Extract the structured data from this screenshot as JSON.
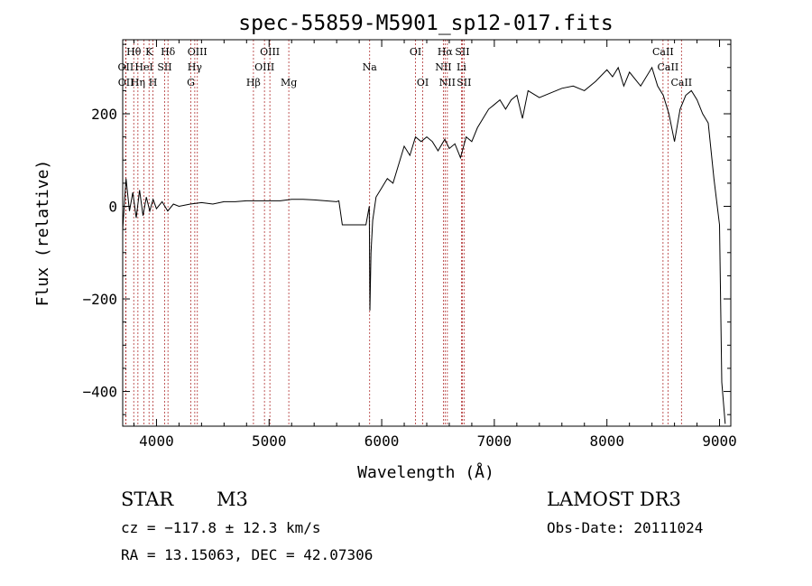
{
  "chart_data": {
    "type": "line",
    "title": "spec-55859-M5901_sp12-017.fits",
    "xlabel": "Wavelength (Å)",
    "ylabel": "Flux (relative)",
    "xlim": [
      3700,
      9100
    ],
    "ylim": [
      -475,
      360
    ],
    "x_ticks": [
      4000,
      5000,
      6000,
      7000,
      8000,
      9000
    ],
    "y_ticks": [
      -400,
      -200,
      0,
      200
    ],
    "grid": false,
    "series": [
      {
        "name": "flux",
        "x": [
          3700,
          3730,
          3760,
          3790,
          3820,
          3850,
          3880,
          3910,
          3940,
          3970,
          4000,
          4050,
          4100,
          4150,
          4200,
          4300,
          4400,
          4500,
          4600,
          4700,
          4800,
          4900,
          5000,
          5100,
          5200,
          5300,
          5400,
          5500,
          5600,
          5620,
          5650,
          5700,
          5800,
          5860,
          5890,
          5895,
          5905,
          5920,
          5950,
          6000,
          6050,
          6100,
          6150,
          6200,
          6250,
          6300,
          6350,
          6400,
          6450,
          6500,
          6560,
          6600,
          6650,
          6700,
          6750,
          6800,
          6850,
          6900,
          6950,
          7000,
          7050,
          7100,
          7150,
          7200,
          7250,
          7300,
          7400,
          7500,
          7600,
          7700,
          7800,
          7900,
          8000,
          8050,
          8100,
          8150,
          8200,
          8300,
          8400,
          8450,
          8500,
          8550,
          8600,
          8650,
          8700,
          8750,
          8800,
          8850,
          8900,
          8950,
          9000,
          9020,
          9050
        ],
        "y": [
          -50,
          60,
          -10,
          30,
          -25,
          35,
          -20,
          20,
          -10,
          15,
          -5,
          10,
          -10,
          5,
          0,
          5,
          8,
          5,
          10,
          10,
          12,
          12,
          12,
          12,
          15,
          15,
          14,
          12,
          10,
          12,
          -40,
          -40,
          -40,
          -40,
          0,
          -225,
          -100,
          -30,
          20,
          40,
          60,
          50,
          90,
          130,
          110,
          150,
          140,
          150,
          140,
          120,
          145,
          125,
          135,
          105,
          150,
          140,
          170,
          190,
          210,
          220,
          230,
          210,
          230,
          240,
          190,
          250,
          235,
          245,
          255,
          260,
          250,
          270,
          295,
          280,
          300,
          260,
          290,
          260,
          300,
          260,
          240,
          200,
          140,
          210,
          240,
          250,
          230,
          200,
          180,
          60,
          -40,
          -380,
          -470
        ]
      }
    ],
    "emission_lines": [
      {
        "label": "Hθ",
        "x": 3798
      },
      {
        "label": "K",
        "x": 3934
      },
      {
        "label": "Hδ",
        "x": 4102
      },
      {
        "label": "OIII",
        "x": 4363
      },
      {
        "label": "OIII",
        "x": 5007
      },
      {
        "label": "OI",
        "x": 6300
      },
      {
        "label": "Hα",
        "x": 6563
      },
      {
        "label": "SII",
        "x": 6716
      },
      {
        "label": "CaII",
        "x": 8498
      },
      {
        "label": "OII",
        "x": 3727
      },
      {
        "label": "HeI",
        "x": 3889
      },
      {
        "label": "SII",
        "x": 4072
      },
      {
        "label": "Hγ",
        "x": 4340
      },
      {
        "label": "OIII",
        "x": 4959
      },
      {
        "label": "Na",
        "x": 5893
      },
      {
        "label": "NII",
        "x": 6548
      },
      {
        "label": "Li",
        "x": 6708
      },
      {
        "label": "CaII",
        "x": 8542
      },
      {
        "label": "OII",
        "x": 3729
      },
      {
        "label": "Hη",
        "x": 3835
      },
      {
        "label": "H",
        "x": 3969
      },
      {
        "label": "G",
        "x": 4305
      },
      {
        "label": "Hβ",
        "x": 4861
      },
      {
        "label": "Mg",
        "x": 5175
      },
      {
        "label": "OI",
        "x": 6364
      },
      {
        "label": "NII",
        "x": 6583
      },
      {
        "label": "SII",
        "x": 6731
      },
      {
        "label": "CaII",
        "x": 8662
      }
    ]
  },
  "info": {
    "class": "STAR",
    "subclass": "M3",
    "survey": "LAMOST DR3",
    "cz": "cz = −117.8 ± 12.3 km/s",
    "obs_date": "Obs-Date: 20111024",
    "coords": "RA =  13.15063, DEC =  42.07306"
  }
}
